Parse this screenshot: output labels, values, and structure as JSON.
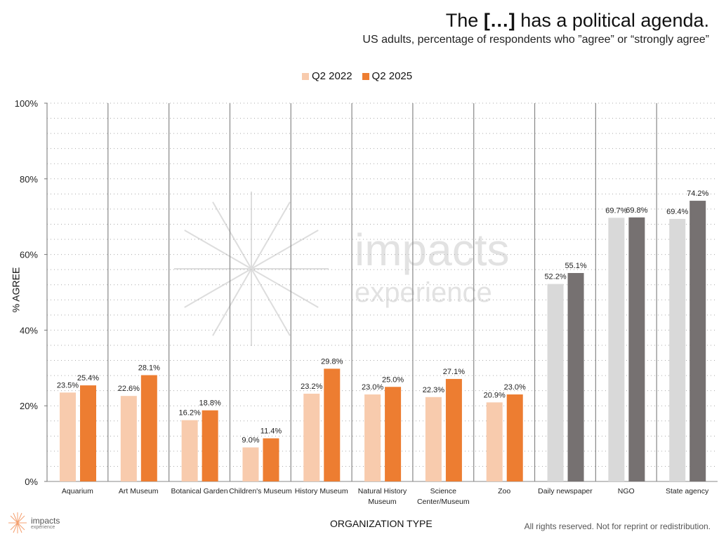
{
  "chart_data": {
    "type": "bar",
    "title_prefix": "The ",
    "title_bold": "[…]",
    "title_suffix": " has a political agenda.",
    "subtitle": "US adults, percentage of respondents who ”agree” or “strongly agree”",
    "xlabel": "ORGANIZATION TYPE",
    "ylabel": "% AGREE",
    "ylim": [
      0,
      100
    ],
    "yticks": [
      "0%",
      "20%",
      "40%",
      "60%",
      "80%",
      "100%"
    ],
    "grid": "dotted horizontal every 4%",
    "legend_position": "top-center",
    "categories": [
      "Aquarium",
      "Art Museum",
      "Botanical Garden",
      "Children's Museum",
      "History Museum",
      "Natural History Museum",
      "Science Center/Museum",
      "Zoo",
      "Daily newspaper",
      "NGO",
      "State agency"
    ],
    "category_lines": [
      [
        "Aquarium"
      ],
      [
        "Art Museum"
      ],
      [
        "Botanical Garden"
      ],
      [
        "Children's Museum"
      ],
      [
        "History Museum"
      ],
      [
        "Natural History",
        "Museum"
      ],
      [
        "Science",
        "Center/Museum"
      ],
      [
        "Zoo"
      ],
      [
        "Daily newspaper"
      ],
      [
        "NGO"
      ],
      [
        "State agency"
      ]
    ],
    "series": [
      {
        "name": "Q2 2022",
        "values": [
          23.5,
          22.6,
          16.2,
          9.0,
          23.2,
          23.0,
          22.3,
          20.9,
          52.2,
          69.7,
          69.4
        ],
        "labels": [
          "23.5%",
          "22.6%",
          "16.2%",
          "9.0%",
          "23.2%",
          "23.0%",
          "22.3%",
          "20.9%",
          "52.2%",
          "69.7%",
          "69.4%"
        ]
      },
      {
        "name": "Q2 2025",
        "values": [
          25.4,
          28.1,
          18.8,
          11.4,
          29.8,
          25.0,
          27.1,
          23.0,
          55.1,
          69.8,
          74.2
        ],
        "labels": [
          "25.4%",
          "28.1%",
          "18.8%",
          "11.4%",
          "29.8%",
          "25.0%",
          "27.1%",
          "23.0%",
          "55.1%",
          "69.8%",
          "74.2%"
        ]
      }
    ]
  },
  "colors": {
    "q2022": "#f8cbad",
    "q2025": "#ed7d31",
    "gray2022": "#d9d9d9",
    "gray2025": "#767171"
  },
  "footer": {
    "rights": "All rights reserved. Not for reprint or redistribution.",
    "logo_line1": "impacts",
    "logo_line2": "experience"
  },
  "watermark": {
    "line1": "impacts",
    "line2": "experience"
  }
}
